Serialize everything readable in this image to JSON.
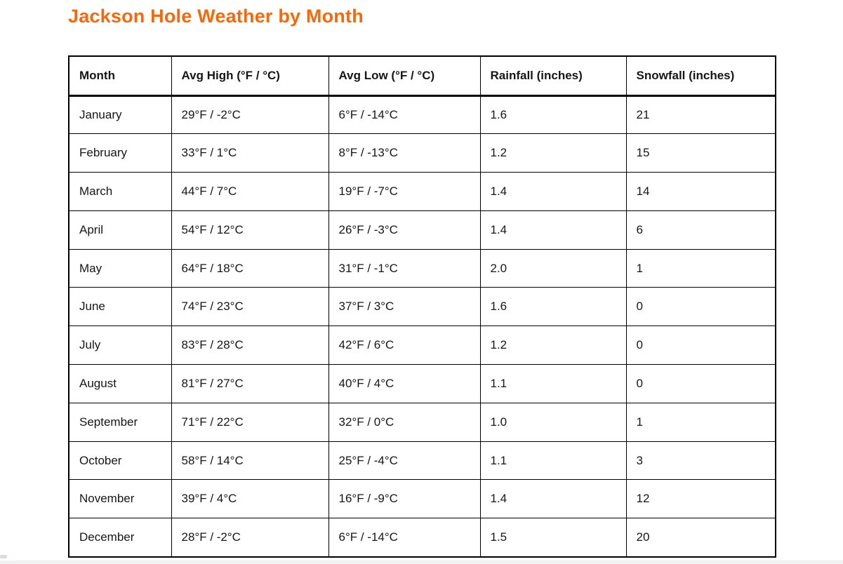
{
  "title": "Jackson Hole Weather by Month",
  "colors": {
    "title_orange": "#F5690D",
    "table_border": "#000000",
    "text": "#161616"
  },
  "table": {
    "headers": [
      "Month",
      "Avg High (°F / °C)",
      "Avg Low (°F / °C)",
      "Rainfall (inches)",
      "Snowfall (inches)"
    ],
    "rows": [
      [
        "January",
        "29°F / -2°C",
        "6°F / -14°C",
        "1.6",
        "21"
      ],
      [
        "February",
        "33°F / 1°C",
        "8°F / -13°C",
        "1.2",
        "15"
      ],
      [
        "March",
        "44°F / 7°C",
        "19°F / -7°C",
        "1.4",
        "14"
      ],
      [
        "April",
        "54°F / 12°C",
        "26°F / -3°C",
        "1.4",
        "6"
      ],
      [
        "May",
        "64°F / 18°C",
        "31°F / -1°C",
        "2.0",
        "1"
      ],
      [
        "June",
        "74°F / 23°C",
        "37°F / 3°C",
        "1.6",
        "0"
      ],
      [
        "July",
        "83°F / 28°C",
        "42°F / 6°C",
        "1.2",
        "0"
      ],
      [
        "August",
        "81°F / 27°C",
        "40°F / 4°C",
        "1.1",
        "0"
      ],
      [
        "September",
        "71°F / 22°C",
        "32°F / 0°C",
        "1.0",
        "1"
      ],
      [
        "October",
        "58°F / 14°C",
        "25°F / -4°C",
        "1.1",
        "3"
      ],
      [
        "November",
        "39°F / 4°C",
        "16°F / -9°C",
        "1.4",
        "12"
      ],
      [
        "December",
        "28°F / -2°C",
        "6°F / -14°C",
        "1.5",
        "20"
      ]
    ]
  }
}
